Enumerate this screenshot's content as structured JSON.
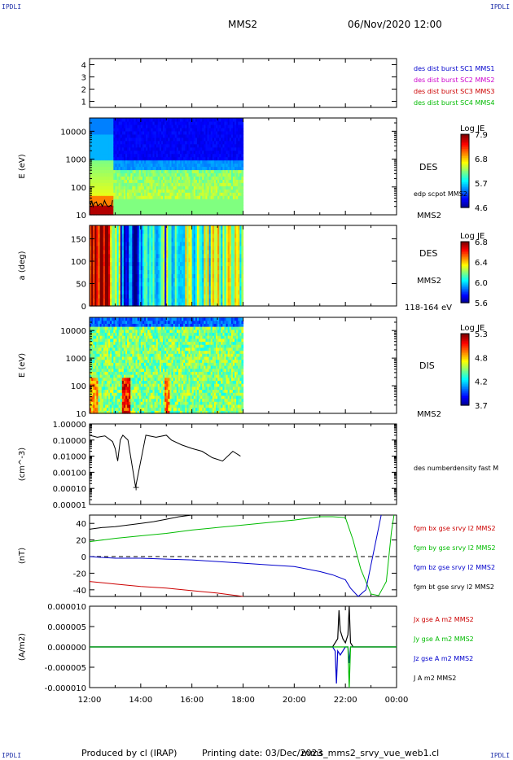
{
  "corner_labels": {
    "top_left": "IPDLI",
    "top_right": "IPDLI",
    "bottom_left": "IPDLI",
    "bottom_right": "IPDLI"
  },
  "header": {
    "spacecraft": "MMS2",
    "datetime": "06/Nov/2020 12:00"
  },
  "footer": {
    "produced_by": "Produced by cl (IRAP)",
    "printing_date": "Printing date: 03/Dec/2023",
    "filename": "mms_mms2_srvy_vue_web1.cl"
  },
  "colors": {
    "blue": "#0000cc",
    "magenta": "#cc00cc",
    "red": "#cc0000",
    "green": "#00bb00",
    "black": "#000000"
  },
  "chart_data": [
    {
      "type": "scatter",
      "ylabel": "",
      "ylim": [
        0.5,
        4.5
      ],
      "yticks": [
        "1",
        "2",
        "3",
        "4"
      ],
      "xlim_hours": [
        12,
        24
      ],
      "legend": [
        {
          "text": "des dist burst SC1 MMS1",
          "color": "#0000cc"
        },
        {
          "text": "des dist burst SC2 MMS2",
          "color": "#cc00cc"
        },
        {
          "text": "des dist burst SC3 MMS3",
          "color": "#cc0000"
        },
        {
          "text": "des dist burst SC4 MMS4",
          "color": "#00bb00"
        }
      ]
    },
    {
      "type": "heatmap",
      "ylabel": "E (eV)",
      "yscale": "log",
      "yticks": [
        "10",
        "100",
        "1000",
        "10000"
      ],
      "ylim": [
        10,
        30000
      ],
      "data_until_hour": 18,
      "label": "DES",
      "sublabel": "MMS2",
      "overlay_label": "edp scpot MMS2",
      "colorbar": {
        "title": "Log JE",
        "ticks": [
          "7.9",
          "6.8",
          "5.7",
          "4.6"
        ],
        "min": 4.6,
        "max": 7.9
      }
    },
    {
      "type": "heatmap",
      "ylabel": "a (deg)",
      "yticks": [
        "0",
        "50",
        "100",
        "150"
      ],
      "ylim": [
        0,
        180
      ],
      "data_until_hour": 18,
      "label": "DES",
      "sublabel": "MMS2",
      "energy_label": "118-164 eV",
      "colorbar": {
        "title": "Log JE",
        "ticks": [
          "6.8",
          "6.4",
          "6.0",
          "5.6"
        ],
        "min": 5.6,
        "max": 6.8
      }
    },
    {
      "type": "heatmap",
      "ylabel": "E (eV)",
      "yscale": "log",
      "yticks": [
        "10",
        "100",
        "1000",
        "10000"
      ],
      "ylim": [
        10,
        30000
      ],
      "data_until_hour": 18,
      "label": "DIS",
      "sublabel": "MMS2",
      "colorbar": {
        "title": "Log JE",
        "ticks": [
          "5.3",
          "4.8",
          "4.2",
          "3.7"
        ],
        "min": 3.7,
        "max": 5.3
      }
    },
    {
      "type": "line",
      "ylabel": "(cm^-3)",
      "yscale": "log",
      "yticks": [
        "1.00000",
        "0.10000",
        "0.01000",
        "0.00100",
        "0.00010",
        "0.00001"
      ],
      "ylim": [
        1e-05,
        1.0
      ],
      "legend": [
        {
          "text": "des numberdensity fast M",
          "color": "#000000"
        }
      ],
      "series": [
        {
          "x": [
            12.0,
            12.3,
            12.6,
            12.9,
            13.0,
            13.1,
            13.2,
            13.3,
            13.5,
            13.8,
            14.2,
            14.6,
            15.0,
            15.2,
            15.6,
            16.0,
            16.4,
            16.8,
            17.2,
            17.6,
            17.9
          ],
          "y": [
            0.2,
            0.15,
            0.18,
            0.08,
            0.03,
            0.005,
            0.1,
            0.2,
            0.1,
            0.00012,
            0.2,
            0.15,
            0.2,
            0.1,
            0.05,
            0.03,
            0.02,
            0.008,
            0.005,
            0.02,
            0.01
          ]
        }
      ]
    },
    {
      "type": "line",
      "ylabel": "(nT)",
      "yticks": [
        "40",
        "20",
        "0",
        "-20",
        "-40"
      ],
      "ylim": [
        -48,
        50
      ],
      "legend": [
        {
          "text": "fgm bx gse srvy l2 MMS2",
          "color": "#cc0000"
        },
        {
          "text": "fgm by gse srvy l2 MMS2",
          "color": "#00bb00"
        },
        {
          "text": "fgm bz gse srvy l2 MMS2",
          "color": "#0000cc"
        },
        {
          "text": "fgm bt gse srvy l2 MMS2",
          "color": "#000000"
        }
      ],
      "series": [
        {
          "x": [
            12,
            13,
            14,
            15,
            16,
            17,
            18
          ],
          "y": [
            -30,
            -33,
            -36,
            -38,
            -41,
            -44,
            -48
          ]
        },
        {
          "x": [
            12,
            13,
            14,
            15,
            16,
            17,
            18,
            19,
            20,
            21,
            21.5,
            22,
            22.3,
            22.6,
            23.0,
            23.3,
            23.6,
            23.8,
            23.9
          ],
          "y": [
            18,
            22,
            25,
            28,
            32,
            35,
            38,
            41,
            44,
            48,
            48,
            47,
            20,
            -15,
            -45,
            -47,
            -30,
            30,
            50
          ]
        },
        {
          "x": [
            12,
            13,
            14,
            15,
            16,
            17,
            18,
            19,
            20,
            21,
            21.5,
            22,
            22.2,
            22.5,
            22.8,
            23.0,
            23.2,
            23.4
          ],
          "y": [
            0,
            -2,
            -2,
            -3,
            -4,
            -6,
            -8,
            -10,
            -12,
            -18,
            -22,
            -28,
            -38,
            -48,
            -40,
            -10,
            20,
            50
          ]
        },
        {
          "x": [
            12,
            12.5,
            13,
            13.5,
            14,
            14.5,
            15,
            15.5,
            16
          ],
          "y": [
            33,
            35,
            36,
            38,
            40,
            42,
            45,
            48,
            50
          ]
        }
      ]
    },
    {
      "type": "line",
      "ylabel": "(A/m2)",
      "yticks": [
        "0.000010",
        "0.000005",
        "0.000000",
        "-0.000005",
        "-0.000010"
      ],
      "ylim": [
        -1e-05,
        1e-05
      ],
      "xticks": [
        "12:00",
        "14:00",
        "16:00",
        "18:00",
        "20:00",
        "22:00",
        "00:00"
      ],
      "legend": [
        {
          "text": "Jx gse A m2 MMS2",
          "color": "#cc0000"
        },
        {
          "text": "Jy gse A m2 MMS2",
          "color": "#00bb00"
        },
        {
          "text": "Jz gse A m2 MMS2",
          "color": "#0000cc"
        },
        {
          "text": "J A m2 MMS2",
          "color": "#000000"
        }
      ],
      "series": [
        {
          "name": "J",
          "x": [
            12,
            21.5,
            21.7,
            21.75,
            21.8,
            21.9,
            22.0,
            22.1,
            22.15,
            22.2,
            22.3,
            24
          ],
          "y": [
            0,
            0,
            2e-06,
            9e-06,
            4e-06,
            2e-06,
            1e-06,
            3e-06,
            1e-05,
            1e-06,
            0,
            0
          ]
        },
        {
          "name": "Jz",
          "x": [
            12,
            21.5,
            21.6,
            21.65,
            21.7,
            21.8,
            22.0,
            22.1,
            22.15,
            22.2,
            24
          ],
          "y": [
            0,
            0,
            -1e-06,
            -9e-06,
            -1e-06,
            -2e-06,
            0,
            0,
            -4e-06,
            0,
            0
          ]
        },
        {
          "name": "Jy",
          "x": [
            12,
            22.1,
            22.15,
            22.2,
            24
          ],
          "y": [
            0,
            0,
            -1e-05,
            0,
            0
          ]
        }
      ]
    }
  ]
}
